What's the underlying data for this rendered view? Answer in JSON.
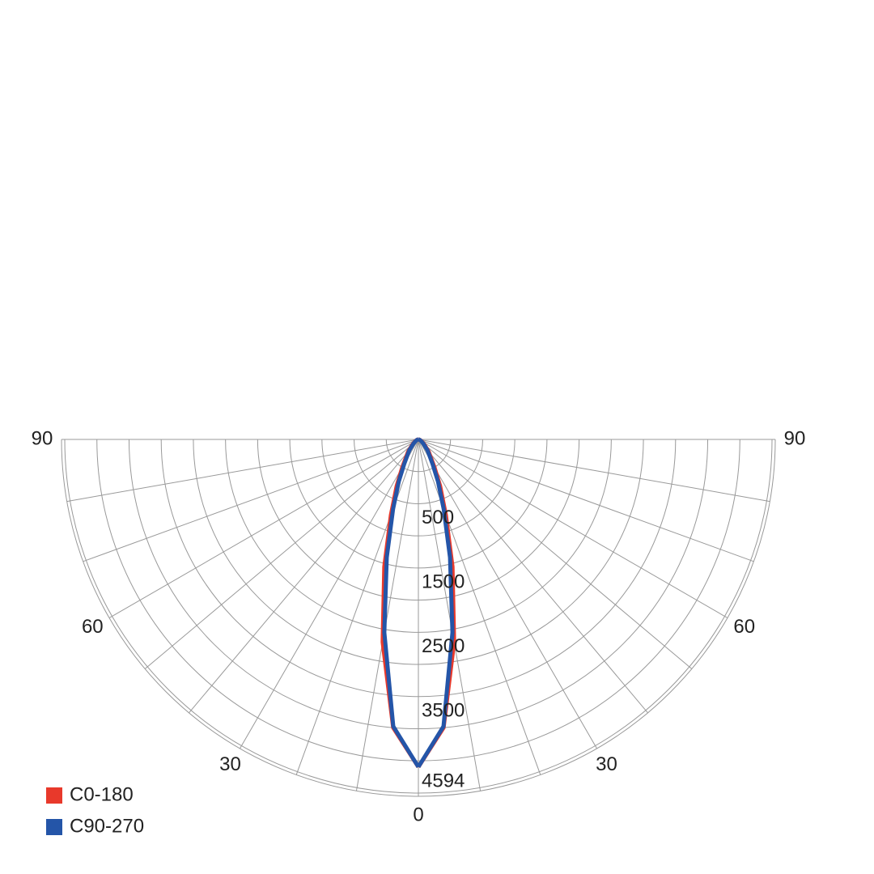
{
  "chart_data": {
    "type": "polar",
    "x": [
      0,
      5,
      10,
      15,
      20,
      25,
      30,
      40,
      50,
      60,
      70,
      80,
      90
    ],
    "series": [
      {
        "name": "C0-180",
        "color": "#e8392b",
        "values": [
          5094,
          4500,
          3200,
          2050,
          1250,
          800,
          500,
          250,
          120,
          60,
          30,
          10,
          0
        ]
      },
      {
        "name": "C90-270",
        "color": "#2455a8",
        "values": [
          5094,
          4480,
          3050,
          1900,
          1150,
          720,
          440,
          220,
          100,
          50,
          25,
          10,
          0
        ]
      }
    ],
    "rlim": [
      0,
      5500
    ],
    "rticks": [
      500,
      1500,
      2500,
      3500,
      4594
    ],
    "rgrid": [
      500,
      1000,
      1500,
      2000,
      2500,
      3000,
      3500,
      4000,
      4500,
      5000,
      5500
    ],
    "xticks": [
      0,
      30,
      60,
      90
    ],
    "xgrid": [
      10,
      20,
      30,
      40,
      50,
      60,
      70,
      80
    ],
    "legend": "bottom-left"
  }
}
